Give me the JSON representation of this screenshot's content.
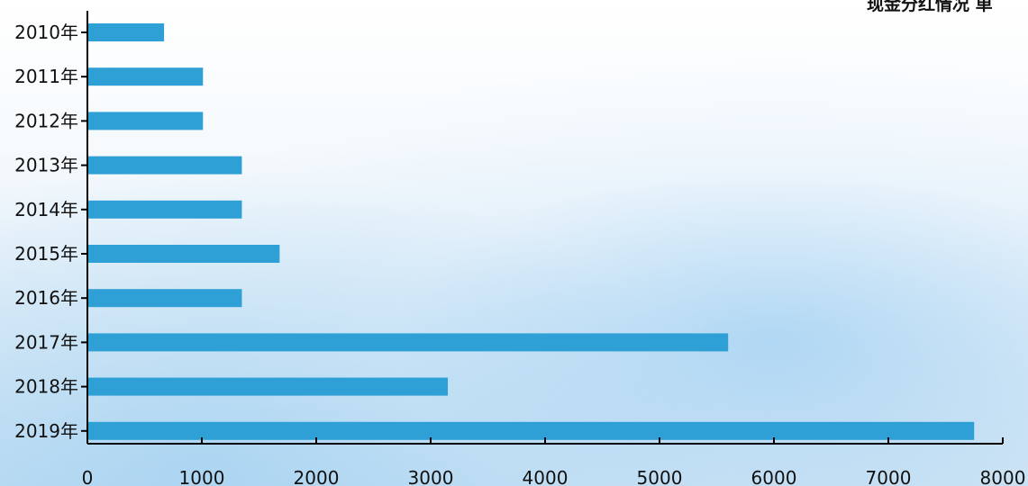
{
  "chart_data": {
    "type": "bar",
    "orientation": "horizontal",
    "title": "现金分红情况 单",
    "categories": [
      "2010年",
      "2011年",
      "2012年",
      "2013年",
      "2014年",
      "2015年",
      "2016年",
      "2017年",
      "2018年",
      "2019年"
    ],
    "values": [
      670,
      1010,
      1010,
      1350,
      1350,
      1680,
      1350,
      5600,
      3150,
      7750
    ],
    "xlim": [
      0,
      8000
    ],
    "xticks": [
      0,
      1000,
      2000,
      3000,
      4000,
      5000,
      6000,
      7000,
      8000
    ],
    "grid": false,
    "bar_color": "#2fa0d6",
    "axis_color": "#000000"
  }
}
